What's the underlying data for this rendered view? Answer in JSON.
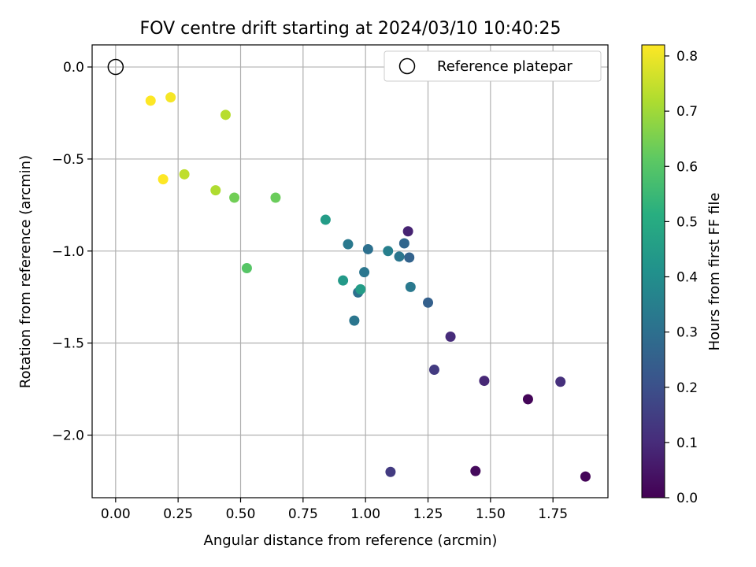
{
  "chart_data": {
    "type": "scatter",
    "title": "FOV centre drift starting at 2024/03/10 10:40:25",
    "xlabel": "Angular distance from reference (arcmin)",
    "ylabel": "Rotation from reference (arcmin)",
    "xlim": [
      -0.094,
      1.97
    ],
    "ylim": [
      -2.34,
      0.12
    ],
    "xticks": [
      0.0,
      0.25,
      0.5,
      0.75,
      1.0,
      1.25,
      1.5,
      1.75
    ],
    "xtick_labels": [
      "0.00",
      "0.25",
      "0.50",
      "0.75",
      "1.00",
      "1.25",
      "1.50",
      "1.75"
    ],
    "yticks": [
      0.0,
      -0.5,
      -1.0,
      -1.5,
      -2.0
    ],
    "ytick_labels": [
      "0.0",
      "−0.5",
      "−1.0",
      "−1.5",
      "−2.0"
    ],
    "grid": true,
    "legend": {
      "position": "top-right",
      "entries": [
        "Reference platepar"
      ]
    },
    "reference_point": {
      "x": 0.0,
      "y": 0.0
    },
    "colorbar": {
      "label": "Hours from first FF file",
      "colormap": "viridis",
      "range": [
        0.0,
        0.82
      ],
      "ticks": [
        0.0,
        0.1,
        0.2,
        0.3,
        0.4,
        0.5,
        0.6,
        0.7,
        0.8
      ],
      "tick_labels": [
        "0.0",
        "0.1",
        "0.2",
        "0.3",
        "0.4",
        "0.5",
        "0.6",
        "0.7",
        "0.8"
      ]
    },
    "points": [
      {
        "x": 0.14,
        "y": -0.183,
        "hours": 0.82
      },
      {
        "x": 0.22,
        "y": -0.165,
        "hours": 0.81
      },
      {
        "x": 0.44,
        "y": -0.26,
        "hours": 0.73
      },
      {
        "x": 0.19,
        "y": -0.61,
        "hours": 0.82
      },
      {
        "x": 0.275,
        "y": -0.583,
        "hours": 0.74
      },
      {
        "x": 0.4,
        "y": -0.67,
        "hours": 0.72
      },
      {
        "x": 0.475,
        "y": -0.71,
        "hours": 0.64
      },
      {
        "x": 0.64,
        "y": -0.71,
        "hours": 0.63
      },
      {
        "x": 0.525,
        "y": -1.093,
        "hours": 0.6
      },
      {
        "x": 0.84,
        "y": -0.83,
        "hours": 0.45
      },
      {
        "x": 0.93,
        "y": -0.963,
        "hours": 0.33
      },
      {
        "x": 1.01,
        "y": -0.99,
        "hours": 0.3
      },
      {
        "x": 1.09,
        "y": -1.0,
        "hours": 0.35
      },
      {
        "x": 1.135,
        "y": -1.03,
        "hours": 0.32
      },
      {
        "x": 1.155,
        "y": -0.958,
        "hours": 0.27
      },
      {
        "x": 1.17,
        "y": -0.893,
        "hours": 0.08
      },
      {
        "x": 1.175,
        "y": -1.035,
        "hours": 0.26
      },
      {
        "x": 0.91,
        "y": -1.16,
        "hours": 0.44
      },
      {
        "x": 0.995,
        "y": -1.115,
        "hours": 0.32
      },
      {
        "x": 0.97,
        "y": -1.225,
        "hours": 0.3
      },
      {
        "x": 0.98,
        "y": -1.208,
        "hours": 0.45
      },
      {
        "x": 1.18,
        "y": -1.195,
        "hours": 0.33
      },
      {
        "x": 0.955,
        "y": -1.378,
        "hours": 0.32
      },
      {
        "x": 1.25,
        "y": -1.28,
        "hours": 0.25
      },
      {
        "x": 1.34,
        "y": -1.465,
        "hours": 0.1
      },
      {
        "x": 1.275,
        "y": -1.645,
        "hours": 0.14
      },
      {
        "x": 1.475,
        "y": -1.705,
        "hours": 0.09
      },
      {
        "x": 1.65,
        "y": -1.805,
        "hours": 0.01
      },
      {
        "x": 1.78,
        "y": -1.71,
        "hours": 0.11
      },
      {
        "x": 1.1,
        "y": -2.2,
        "hours": 0.14
      },
      {
        "x": 1.44,
        "y": -2.195,
        "hours": 0.02
      },
      {
        "x": 1.88,
        "y": -2.225,
        "hours": 0.01
      }
    ]
  }
}
